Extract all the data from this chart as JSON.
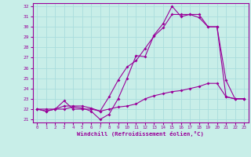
{
  "title": "",
  "xlabel": "Windchill (Refroidissement éolien,°C)",
  "ylabel": "",
  "background_color": "#c8eee8",
  "grid_color": "#aadddd",
  "line_color": "#990099",
  "xlim": [
    -0.5,
    23.5
  ],
  "ylim": [
    20.7,
    32.3
  ],
  "xticks": [
    0,
    1,
    2,
    3,
    4,
    5,
    6,
    7,
    8,
    9,
    10,
    11,
    12,
    13,
    14,
    15,
    16,
    17,
    18,
    19,
    20,
    21,
    22,
    23
  ],
  "yticks": [
    21,
    22,
    23,
    24,
    25,
    26,
    27,
    28,
    29,
    30,
    31,
    32
  ],
  "line1_x": [
    0,
    1,
    2,
    3,
    4,
    5,
    6,
    7,
    8,
    9,
    10,
    11,
    12,
    13,
    14,
    15,
    16,
    17,
    18,
    19,
    20,
    21,
    22,
    23
  ],
  "line1_y": [
    22.0,
    21.8,
    22.0,
    22.0,
    22.2,
    22.1,
    21.8,
    21.0,
    21.5,
    23.0,
    25.0,
    27.2,
    27.1,
    29.2,
    30.3,
    32.0,
    31.0,
    31.2,
    31.2,
    30.0,
    30.0,
    24.8,
    23.0,
    23.0
  ],
  "line2_x": [
    0,
    1,
    2,
    3,
    4,
    5,
    6,
    7,
    8,
    9,
    10,
    11,
    12,
    13,
    14,
    15,
    16,
    17,
    18,
    19,
    20,
    21,
    22,
    23
  ],
  "line2_y": [
    22.0,
    22.0,
    22.0,
    22.3,
    22.3,
    22.3,
    22.1,
    21.8,
    23.2,
    24.8,
    26.1,
    26.7,
    27.9,
    29.1,
    29.9,
    31.2,
    31.2,
    31.2,
    30.9,
    30.0,
    30.0,
    23.2,
    23.0,
    23.0
  ],
  "line3_x": [
    0,
    1,
    2,
    3,
    4,
    5,
    6,
    7,
    8,
    9,
    10,
    11,
    12,
    13,
    14,
    15,
    16,
    17,
    18,
    19,
    20,
    21,
    22,
    23
  ],
  "line3_y": [
    22.0,
    21.8,
    22.0,
    22.8,
    22.0,
    22.0,
    22.0,
    21.8,
    22.0,
    22.2,
    22.3,
    22.5,
    23.0,
    23.3,
    23.5,
    23.7,
    23.8,
    24.0,
    24.2,
    24.5,
    24.5,
    23.2,
    23.0,
    23.0
  ]
}
